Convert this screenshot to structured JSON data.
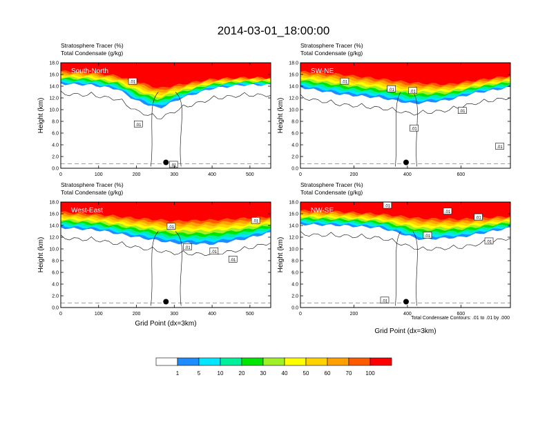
{
  "title": "2014-03-01_18:00:00",
  "legend_note": "Total Condensate Contours: .01 to .01 by .000",
  "colorbar": {
    "labels": [
      "1",
      "5",
      "10",
      "20",
      "30",
      "40",
      "50",
      "60",
      "70",
      "100"
    ],
    "colors": [
      "#ffffff",
      "#1e8cff",
      "#00e6ff",
      "#00f09c",
      "#00e600",
      "#a0f028",
      "#ffff00",
      "#ffd200",
      "#ffa000",
      "#ff5a00",
      "#ff0000"
    ]
  },
  "chart_data": [
    {
      "type": "heatmap",
      "panel_label": "South-North",
      "header": [
        "Stratosphere Tracer   (%)",
        "Total Condensate   (g/kg)"
      ],
      "xlabel": "",
      "ylabel": "Height (km)",
      "xlim": [
        0,
        555
      ],
      "ylim": [
        0,
        18
      ],
      "x_ticks": [
        0,
        100,
        200,
        300,
        400,
        500
      ],
      "y_ticks": [
        "0.0",
        "2.0",
        "4.0",
        "6.0",
        "8.0",
        "10.0",
        "12.0",
        "14.0",
        "16.0",
        "18.0"
      ],
      "contour_labels": [
        {
          "text": ".01",
          "x": 190,
          "y": 14.8
        },
        {
          "text": ".01",
          "x": 205,
          "y": 7.5
        },
        {
          "text": ".01",
          "x": 298,
          "y": 0.6
        }
      ],
      "marker": {
        "x": 278,
        "y": 1.0
      },
      "top_band": [
        {
          "x": 0,
          "y": 16.8
        },
        {
          "x": 80,
          "y": 16.6
        },
        {
          "x": 150,
          "y": 16.0
        },
        {
          "x": 200,
          "y": 15.2
        },
        {
          "x": 260,
          "y": 14.0
        },
        {
          "x": 320,
          "y": 14.6
        },
        {
          "x": 400,
          "y": 15.4
        },
        {
          "x": 480,
          "y": 15.6
        },
        {
          "x": 555,
          "y": 15.6
        }
      ],
      "cloud_base": [
        {
          "x": 0,
          "y": 14.4
        },
        {
          "x": 80,
          "y": 14.2
        },
        {
          "x": 150,
          "y": 13.5
        },
        {
          "x": 200,
          "y": 11.5
        },
        {
          "x": 260,
          "y": 10.2
        },
        {
          "x": 320,
          "y": 12.0
        },
        {
          "x": 400,
          "y": 13.6
        },
        {
          "x": 480,
          "y": 14.2
        },
        {
          "x": 555,
          "y": 14.2
        }
      ]
    },
    {
      "type": "heatmap",
      "panel_label": "SW-NE",
      "header": [
        "Stratosphere Tracer   (%)",
        "Total Condensate   (g/kg)"
      ],
      "xlabel": "",
      "ylabel": "Height (km)",
      "xlim": [
        0,
        785
      ],
      "ylim": [
        0,
        18
      ],
      "x_ticks": [
        0,
        200,
        400,
        600
      ],
      "y_ticks": [
        "0.0",
        "2.0",
        "4.0",
        "6.0",
        "8.0",
        "10.0",
        "12.0",
        "14.0",
        "16.0",
        "18.0"
      ],
      "contour_labels": [
        {
          "text": ".01",
          "x": 165,
          "y": 14.8
        },
        {
          "text": ".01",
          "x": 340,
          "y": 13.5
        },
        {
          "text": ".01",
          "x": 420,
          "y": 13.2
        },
        {
          "text": ".01",
          "x": 425,
          "y": 6.8
        },
        {
          "text": ".01",
          "x": 605,
          "y": 9.8
        },
        {
          "text": ".01",
          "x": 745,
          "y": 3.7
        }
      ],
      "marker": {
        "x": 395,
        "y": 1.0
      },
      "top_band": [
        {
          "x": 0,
          "y": 16.8
        },
        {
          "x": 150,
          "y": 16.4
        },
        {
          "x": 300,
          "y": 15.6
        },
        {
          "x": 420,
          "y": 15.0
        },
        {
          "x": 550,
          "y": 14.6
        },
        {
          "x": 650,
          "y": 15.2
        },
        {
          "x": 785,
          "y": 16.0
        }
      ],
      "cloud_base": [
        {
          "x": 0,
          "y": 13.8
        },
        {
          "x": 150,
          "y": 12.6
        },
        {
          "x": 300,
          "y": 12.0
        },
        {
          "x": 420,
          "y": 11.0
        },
        {
          "x": 550,
          "y": 11.6
        },
        {
          "x": 650,
          "y": 12.8
        },
        {
          "x": 785,
          "y": 13.8
        }
      ]
    },
    {
      "type": "heatmap",
      "panel_label": "West-East",
      "header": [
        "Stratosphere Tracer   (%)",
        "Total Condensate   (g/kg)"
      ],
      "xlabel": "Grid Point (dx=3km)",
      "ylabel": "Height (km)",
      "xlim": [
        0,
        555
      ],
      "ylim": [
        0,
        18
      ],
      "x_ticks": [
        0,
        100,
        200,
        300,
        400,
        500
      ],
      "y_ticks": [
        "0.0",
        "2.0",
        "4.0",
        "6.0",
        "8.0",
        "10.0",
        "12.0",
        "14.0",
        "16.0",
        "18.0"
      ],
      "contour_labels": [
        {
          "text": ".01",
          "x": 292,
          "y": 13.8
        },
        {
          "text": ".01",
          "x": 335,
          "y": 10.3
        },
        {
          "text": ".01",
          "x": 405,
          "y": 9.6
        },
        {
          "text": ".01",
          "x": 455,
          "y": 8.2
        },
        {
          "text": ".01",
          "x": 515,
          "y": 14.8
        }
      ],
      "marker": {
        "x": 278,
        "y": 1.0
      },
      "top_band": [
        {
          "x": 0,
          "y": 16.6
        },
        {
          "x": 100,
          "y": 16.2
        },
        {
          "x": 200,
          "y": 15.6
        },
        {
          "x": 300,
          "y": 15.2
        },
        {
          "x": 400,
          "y": 15.4
        },
        {
          "x": 480,
          "y": 15.6
        },
        {
          "x": 555,
          "y": 15.8
        }
      ],
      "cloud_base": [
        {
          "x": 0,
          "y": 13.6
        },
        {
          "x": 100,
          "y": 13.2
        },
        {
          "x": 200,
          "y": 12.0
        },
        {
          "x": 300,
          "y": 11.0
        },
        {
          "x": 400,
          "y": 10.8
        },
        {
          "x": 480,
          "y": 11.6
        },
        {
          "x": 555,
          "y": 12.8
        }
      ]
    },
    {
      "type": "heatmap",
      "panel_label": "NW-SE",
      "header": [
        "Stratosphere Tracer   (%)",
        "Total Condensate   (g/kg)"
      ],
      "xlabel": "Grid Point (dx=3km)",
      "ylabel": "Height (km)",
      "xlim": [
        0,
        785
      ],
      "ylim": [
        0,
        18
      ],
      "x_ticks": [
        0,
        200,
        400,
        600
      ],
      "y_ticks": [
        "0.0",
        "2.0",
        "4.0",
        "6.0",
        "8.0",
        "10.0",
        "12.0",
        "14.0",
        "16.0",
        "18.0"
      ],
      "contour_labels": [
        {
          "text": ".01",
          "x": 325,
          "y": 17.4
        },
        {
          "text": ".01",
          "x": 550,
          "y": 16.4
        },
        {
          "text": ".01",
          "x": 665,
          "y": 15.4
        },
        {
          "text": ".01",
          "x": 475,
          "y": 12.3
        },
        {
          "text": ".01",
          "x": 705,
          "y": 11.3
        },
        {
          "text": ".01",
          "x": 315,
          "y": 1.2
        }
      ],
      "marker": {
        "x": 395,
        "y": 1.0
      },
      "top_band": [
        {
          "x": 0,
          "y": 16.8
        },
        {
          "x": 150,
          "y": 16.6
        },
        {
          "x": 300,
          "y": 16.2
        },
        {
          "x": 450,
          "y": 15.6
        },
        {
          "x": 600,
          "y": 15.4
        },
        {
          "x": 785,
          "y": 15.8
        }
      ],
      "cloud_base": [
        {
          "x": 0,
          "y": 14.2
        },
        {
          "x": 150,
          "y": 14.0
        },
        {
          "x": 300,
          "y": 13.6
        },
        {
          "x": 450,
          "y": 11.6
        },
        {
          "x": 600,
          "y": 12.0
        },
        {
          "x": 785,
          "y": 13.6
        }
      ]
    }
  ]
}
